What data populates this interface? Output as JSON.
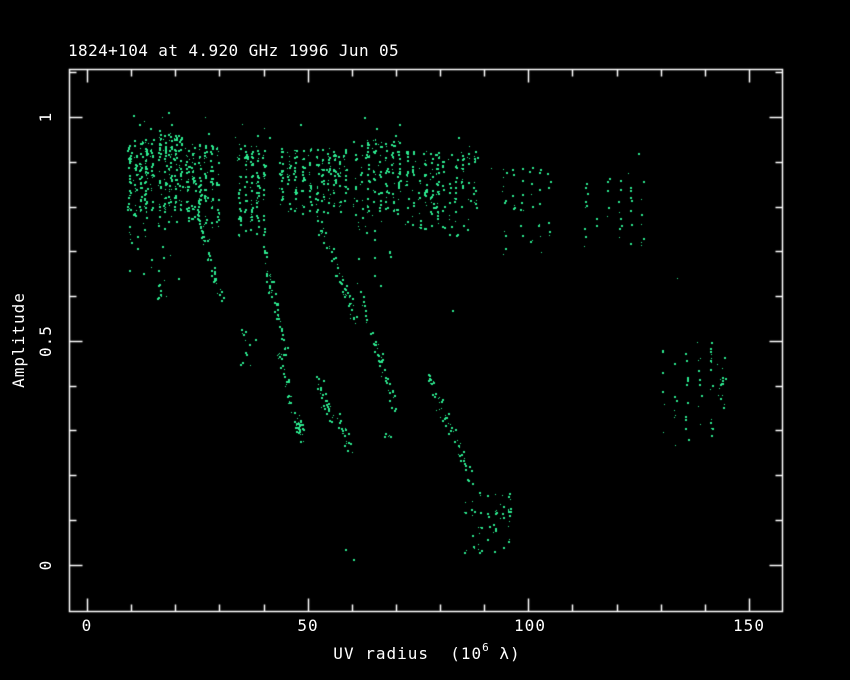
{
  "window": {
    "background": "#000000"
  },
  "chart_data": {
    "type": "scatter",
    "title": "1824+104 at 4.920 GHz 1996 Jun 05",
    "ylabel": "Amplitude",
    "xlabel": "UV radius  (10^6 λ)",
    "xlabel_parts": {
      "prefix": "UV radius  (10",
      "sup": "6",
      "suffix": " λ)"
    },
    "xlim": [
      -4.1,
      157.5
    ],
    "ylim": [
      -0.103,
      1.107
    ],
    "x_major_ticks": [
      0,
      50,
      100,
      150
    ],
    "x_minor_tick_step": 10,
    "x_minor_tick_range": [
      0,
      150
    ],
    "y_major_ticks": [
      0,
      0.5,
      1
    ],
    "y_minor_tick_step": 0.1,
    "y_minor_tick_range": [
      0,
      1.1
    ],
    "x_tick_labels": [
      "0",
      "50",
      "100",
      "150"
    ],
    "y_tick_labels": [
      "1",
      "0.5",
      "0"
    ],
    "grid": false,
    "legend_position": "none",
    "axis_color": "#ffffff",
    "text_color": "#ffffff",
    "point_color": "#2BE78D",
    "background_color": "#000000",
    "seed": 1824,
    "clusters": [
      {
        "type": "band",
        "uv": [
          8.9,
          15.2
        ],
        "amp": [
          0.775,
          0.952
        ],
        "n": 155,
        "cols": 5
      },
      {
        "type": "band",
        "uv": [
          15.8,
          21.6
        ],
        "amp": [
          0.775,
          0.965
        ],
        "n": 150,
        "cols": 5
      },
      {
        "type": "band",
        "uv": [
          21.9,
          30.2
        ],
        "amp": [
          0.75,
          0.94
        ],
        "n": 165,
        "cols": 6
      },
      {
        "type": "band",
        "uv": [
          33.8,
          40.6
        ],
        "amp": [
          0.73,
          0.94
        ],
        "n": 125,
        "cols": 5
      },
      {
        "type": "band",
        "uv": [
          43.2,
          51.2
        ],
        "amp": [
          0.785,
          0.93
        ],
        "n": 110,
        "cols": 5
      },
      {
        "type": "band",
        "uv": [
          51.5,
          59.0
        ],
        "amp": [
          0.775,
          0.93
        ],
        "n": 115,
        "cols": 6
      },
      {
        "type": "band",
        "uv": [
          60.0,
          71.2
        ],
        "amp": [
          0.775,
          0.952
        ],
        "n": 150,
        "cols": 8
      },
      {
        "type": "band",
        "uv": [
          71.6,
          80.2
        ],
        "amp": [
          0.745,
          0.925
        ],
        "n": 105,
        "cols": 6
      },
      {
        "type": "band",
        "uv": [
          78.4,
          88.6
        ],
        "amp": [
          0.73,
          0.925
        ],
        "n": 95,
        "cols": 7
      },
      {
        "type": "band",
        "uv": [
          9.0,
          21.0
        ],
        "amp": [
          0.615,
          0.775
        ],
        "n": 24,
        "cols": 8
      },
      {
        "type": "band",
        "uv": [
          15.6,
          18.0
        ],
        "amp": [
          0.575,
          0.64
        ],
        "n": 9,
        "cols": 3
      },
      {
        "type": "band",
        "uv": [
          34.5,
          38.5
        ],
        "amp": [
          0.44,
          0.53
        ],
        "n": 12,
        "cols": 4
      },
      {
        "type": "band",
        "uv": [
          60.5,
          71.0
        ],
        "amp": [
          0.62,
          0.775
        ],
        "n": 16,
        "cols": 6
      },
      {
        "type": "band",
        "uv": [
          66.8,
          68.8
        ],
        "amp": [
          0.265,
          0.3
        ],
        "n": 5,
        "cols": 2
      },
      {
        "type": "band",
        "uv": [
          84.8,
          96.5
        ],
        "amp": [
          0.025,
          0.165
        ],
        "n": 60,
        "cols": 7
      },
      {
        "type": "band",
        "uv": [
          93.5,
          105.5
        ],
        "amp": [
          0.665,
          0.89
        ],
        "n": 46,
        "cols": 6
      },
      {
        "type": "band",
        "uv": [
          111.5,
          127.0
        ],
        "amp": [
          0.685,
          0.865
        ],
        "n": 40,
        "cols": 6
      },
      {
        "type": "band",
        "uv": [
          129.0,
          145.5
        ],
        "amp": [
          0.265,
          0.5
        ],
        "n": 52,
        "cols": 6
      },
      {
        "type": "diag",
        "from": [
          24.5,
          0.8
        ],
        "to": [
          30.8,
          0.585
        ],
        "n": 55
      },
      {
        "type": "diag",
        "from": [
          39.8,
          0.705
        ],
        "to": [
          45.2,
          0.47
        ],
        "n": 50
      },
      {
        "type": "diag",
        "from": [
          43.3,
          0.465
        ],
        "to": [
          49.0,
          0.28
        ],
        "n": 45
      },
      {
        "type": "diag",
        "from": [
          52.0,
          0.78
        ],
        "to": [
          61.0,
          0.54
        ],
        "n": 55
      },
      {
        "type": "diag",
        "from": [
          52.0,
          0.4
        ],
        "to": [
          59.5,
          0.265
        ],
        "n": 48,
        "w_amp": 0.045
      },
      {
        "type": "diag",
        "from": [
          62.0,
          0.6
        ],
        "to": [
          69.5,
          0.355
        ],
        "n": 52
      },
      {
        "type": "diag",
        "from": [
          76.8,
          0.43
        ],
        "to": [
          87.0,
          0.195
        ],
        "n": 58
      },
      {
        "type": "blob",
        "c": [
          47.6,
          0.315
        ],
        "s": [
          0.9,
          0.022
        ],
        "n": 16
      },
      {
        "type": "blob",
        "c": [
          143.6,
          0.39
        ],
        "s": [
          0.8,
          0.05
        ],
        "n": 12
      }
    ],
    "singles": [
      [
        10.5,
        1.005
      ],
      [
        11.8,
        0.985
      ],
      [
        13.0,
        0.99
      ],
      [
        14.2,
        0.975
      ],
      [
        16.2,
        0.97
      ],
      [
        17.0,
        1.0
      ],
      [
        18.4,
        1.01
      ],
      [
        19.0,
        0.985
      ],
      [
        20.5,
        0.96
      ],
      [
        26.8,
        1.0
      ],
      [
        27.5,
        0.965
      ],
      [
        33.5,
        0.955
      ],
      [
        35.0,
        0.985
      ],
      [
        38.6,
        0.96
      ],
      [
        40.1,
        0.975
      ],
      [
        41.2,
        0.955
      ],
      [
        48.2,
        0.985
      ],
      [
        62.8,
        1.0
      ],
      [
        65.5,
        0.975
      ],
      [
        69.7,
        0.96
      ],
      [
        70.8,
        0.985
      ],
      [
        84.0,
        0.955
      ],
      [
        86.5,
        0.935
      ],
      [
        91.5,
        0.885
      ],
      [
        122.5,
        0.875
      ],
      [
        124.8,
        0.92
      ],
      [
        133.7,
        0.64
      ],
      [
        82.7,
        0.57
      ],
      [
        58.5,
        0.035
      ],
      [
        60.2,
        0.012
      ]
    ]
  }
}
